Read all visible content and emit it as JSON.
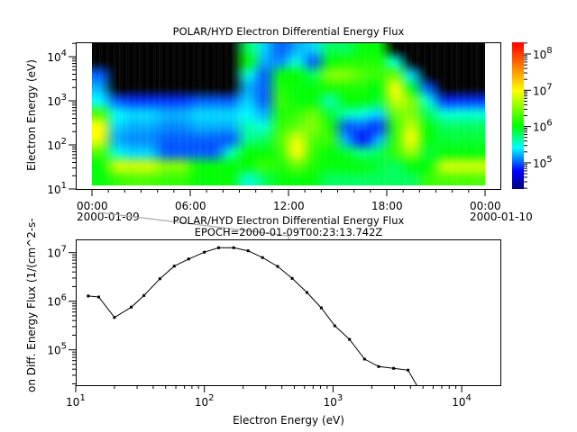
{
  "chart_data": [
    {
      "type": "heatmap",
      "title": "POLAR/HYD  Electron Differential Energy Flux",
      "ylabel": "Electron Energy (eV)",
      "xlabel": "",
      "y_scale": "log",
      "ylim": [
        10,
        21000
      ],
      "x_range": [
        "2000-01-09T00:00",
        "2000-01-10T00:00"
      ],
      "x_ticks": [
        {
          "time": "00:00",
          "date": "2000-01-09",
          "hour": 0
        },
        {
          "time": "06:00",
          "date": "",
          "hour": 6
        },
        {
          "time": "12:00",
          "date": "",
          "hour": 12
        },
        {
          "time": "18:00",
          "date": "",
          "hour": 18
        },
        {
          "time": "00:00",
          "date": "2000-01-10",
          "hour": 24
        }
      ],
      "y_ticks": [
        {
          "base": "10",
          "exp": "1",
          "value": 10
        },
        {
          "base": "10",
          "exp": "2",
          "value": 100
        },
        {
          "base": "10",
          "exp": "3",
          "value": 1000
        },
        {
          "base": "10",
          "exp": "4",
          "value": 10000
        }
      ],
      "time_bins_hours": [
        0,
        1,
        2,
        3,
        4,
        5,
        6,
        7,
        8,
        9,
        10,
        11,
        12,
        13,
        14,
        15,
        16,
        17,
        18,
        19,
        20,
        21,
        22,
        23
      ],
      "energy_bins_eV": [
        17800,
        8900,
        4470,
        2240,
        1120,
        562,
        282,
        141,
        71,
        35,
        18
      ],
      "energy_min_eV": 12.6,
      "z": [
        [
          null,
          null,
          null,
          null,
          null,
          null,
          null,
          null,
          null,
          630000.0,
          200000.0,
          100000.0,
          160000.0,
          200000.0,
          630000.0,
          630000.0,
          1000000.0,
          1000000.0,
          null,
          null,
          null,
          null,
          null,
          null
        ],
        [
          null,
          null,
          null,
          null,
          null,
          null,
          null,
          null,
          null,
          1000000.0,
          160000.0,
          130000.0,
          320000.0,
          100000.0,
          1000000.0,
          1300000.0,
          1300000.0,
          1300000.0,
          320000.0,
          null,
          null,
          null,
          null,
          null
        ],
        [
          100000.0,
          null,
          null,
          null,
          null,
          null,
          null,
          null,
          null,
          320000.0,
          100000.0,
          1000000.0,
          1000000.0,
          630000.0,
          3200000.0,
          3200000.0,
          2000000.0,
          1600000.0,
          2500000.0,
          200000.0,
          null,
          null,
          null,
          null
        ],
        [
          160000.0,
          null,
          null,
          null,
          null,
          null,
          null,
          null,
          null,
          160000.0,
          100000.0,
          1300000.0,
          1000000.0,
          1000000.0,
          1300000.0,
          1300000.0,
          1300000.0,
          1000000.0,
          10000000.0,
          790000.0,
          100000.0,
          null,
          null,
          null
        ],
        [
          250000.0,
          100000.0,
          79000.0,
          79000.0,
          79000.0,
          79000.0,
          100000.0,
          100000.0,
          100000.0,
          200000.0,
          100000.0,
          1600000.0,
          1000000.0,
          1000000.0,
          400000.0,
          1000000.0,
          1000000.0,
          790000.0,
          6300000.0,
          3200000.0,
          320000.0,
          79000.0,
          79000.0,
          79000.0
        ],
        [
          2000000.0,
          250000.0,
          200000.0,
          200000.0,
          160000.0,
          160000.0,
          200000.0,
          200000.0,
          200000.0,
          250000.0,
          160000.0,
          1300000.0,
          1600000.0,
          2500000.0,
          790000.0,
          400000.0,
          320000.0,
          200000.0,
          2500000.0,
          3200000.0,
          630000.0,
          320000.0,
          320000.0,
          320000.0
        ],
        [
          10000000.0,
          200000.0,
          160000.0,
          160000.0,
          130000.0,
          130000.0,
          160000.0,
          160000.0,
          160000.0,
          400000.0,
          320000.0,
          1600000.0,
          2500000.0,
          3200000.0,
          1300000.0,
          100000.0,
          100000.0,
          79000.0,
          1600000.0,
          6300000.0,
          1000000.0,
          630000.0,
          630000.0,
          630000.0
        ],
        [
          7900000.0,
          160000.0,
          130000.0,
          130000.0,
          100000.0,
          100000.0,
          100000.0,
          100000.0,
          100000.0,
          500000.0,
          630000.0,
          2000000.0,
          7900000.0,
          2000000.0,
          1600000.0,
          160000.0,
          63000.0,
          160000.0,
          1600000.0,
          10000000.0,
          1000000.0,
          790000.0,
          790000.0,
          790000.0
        ],
        [
          2000000.0,
          320000.0,
          200000.0,
          200000.0,
          100000.0,
          100000.0,
          100000.0,
          100000.0,
          400000.0,
          1000000.0,
          1000000.0,
          1600000.0,
          10000000.0,
          1600000.0,
          1000000.0,
          790000.0,
          500000.0,
          630000.0,
          1600000.0,
          4000000.0,
          790000.0,
          1000000.0,
          1000000.0,
          1000000.0
        ],
        [
          1000000.0,
          6300000.0,
          6300000.0,
          6300000.0,
          3200000.0,
          3200000.0,
          1000000.0,
          1000000.0,
          1000000.0,
          1000000.0,
          1600000.0,
          1300000.0,
          2500000.0,
          1300000.0,
          1000000.0,
          1000000.0,
          1000000.0,
          790000.0,
          630000.0,
          1000000.0,
          1000000.0,
          6300000.0,
          6300000.0,
          6300000.0
        ],
        [
          1000000.0,
          1600000.0,
          2000000.0,
          2000000.0,
          1600000.0,
          1600000.0,
          1000000.0,
          1000000.0,
          1000000.0,
          320000.0,
          630000.0,
          1000000.0,
          1000000.0,
          1000000.0,
          630000.0,
          630000.0,
          630000.0,
          630000.0,
          630000.0,
          630000.0,
          1600000.0,
          2000000.0,
          2000000.0,
          2000000.0
        ]
      ],
      "no_data_color": "#000000",
      "colormap": "rainbow (dark blue - blue - cyan - green - yellow - orange - red)",
      "colorbar": {
        "scale": "log",
        "range": [
          19000,
          210000000
        ],
        "ticks": [
          {
            "base": "10",
            "exp": "5",
            "value": 100000
          },
          {
            "base": "10",
            "exp": "6",
            "value": 1000000
          },
          {
            "base": "10",
            "exp": "7",
            "value": 10000000
          },
          {
            "base": "10",
            "exp": "8",
            "value": 100000000
          }
        ]
      }
    },
    {
      "type": "line",
      "title": "POLAR/HYD  Electron Differential Energy Flux",
      "annotation": "EPOCH=2000-01-09T00:23:13.742Z",
      "xlabel": "Electron Energy (eV)",
      "ylabel": "on Diff. Energy Flux (1/(cm^2-s-",
      "x_scale": "log",
      "y_scale": "log",
      "xlim": [
        10,
        20300
      ],
      "ylim": [
        18700,
        18500000
      ],
      "x_ticks": [
        {
          "base": "10",
          "exp": "1",
          "value": 10
        },
        {
          "base": "10",
          "exp": "2",
          "value": 100
        },
        {
          "base": "10",
          "exp": "3",
          "value": 1000
        },
        {
          "base": "10",
          "exp": "4",
          "value": 10000
        }
      ],
      "y_ticks": [
        {
          "base": "10",
          "exp": "5",
          "value": 100000
        },
        {
          "base": "10",
          "exp": "6",
          "value": 1000000
        },
        {
          "base": "10",
          "exp": "7",
          "value": 10000000
        }
      ],
      "x": [
        12.5,
        15.1,
        20.0,
        27.0,
        33.9,
        45.1,
        58.3,
        75.5,
        100,
        129,
        169,
        219,
        283,
        371,
        481,
        627,
        811,
        1032,
        1343,
        1757,
        2262,
        2958,
        3830,
        4950
      ],
      "y": [
        1280000,
        1220000,
        464000,
        755000,
        1310000,
        2900000,
        5270000,
        7400000,
        10200000,
        12600000,
        12600000,
        10900000,
        7900000,
        5200000,
        2950000,
        1510000,
        730000,
        312000,
        164000,
        64600,
        45300,
        41600,
        38200,
        11700
      ],
      "line_color": "#000000"
    }
  ]
}
